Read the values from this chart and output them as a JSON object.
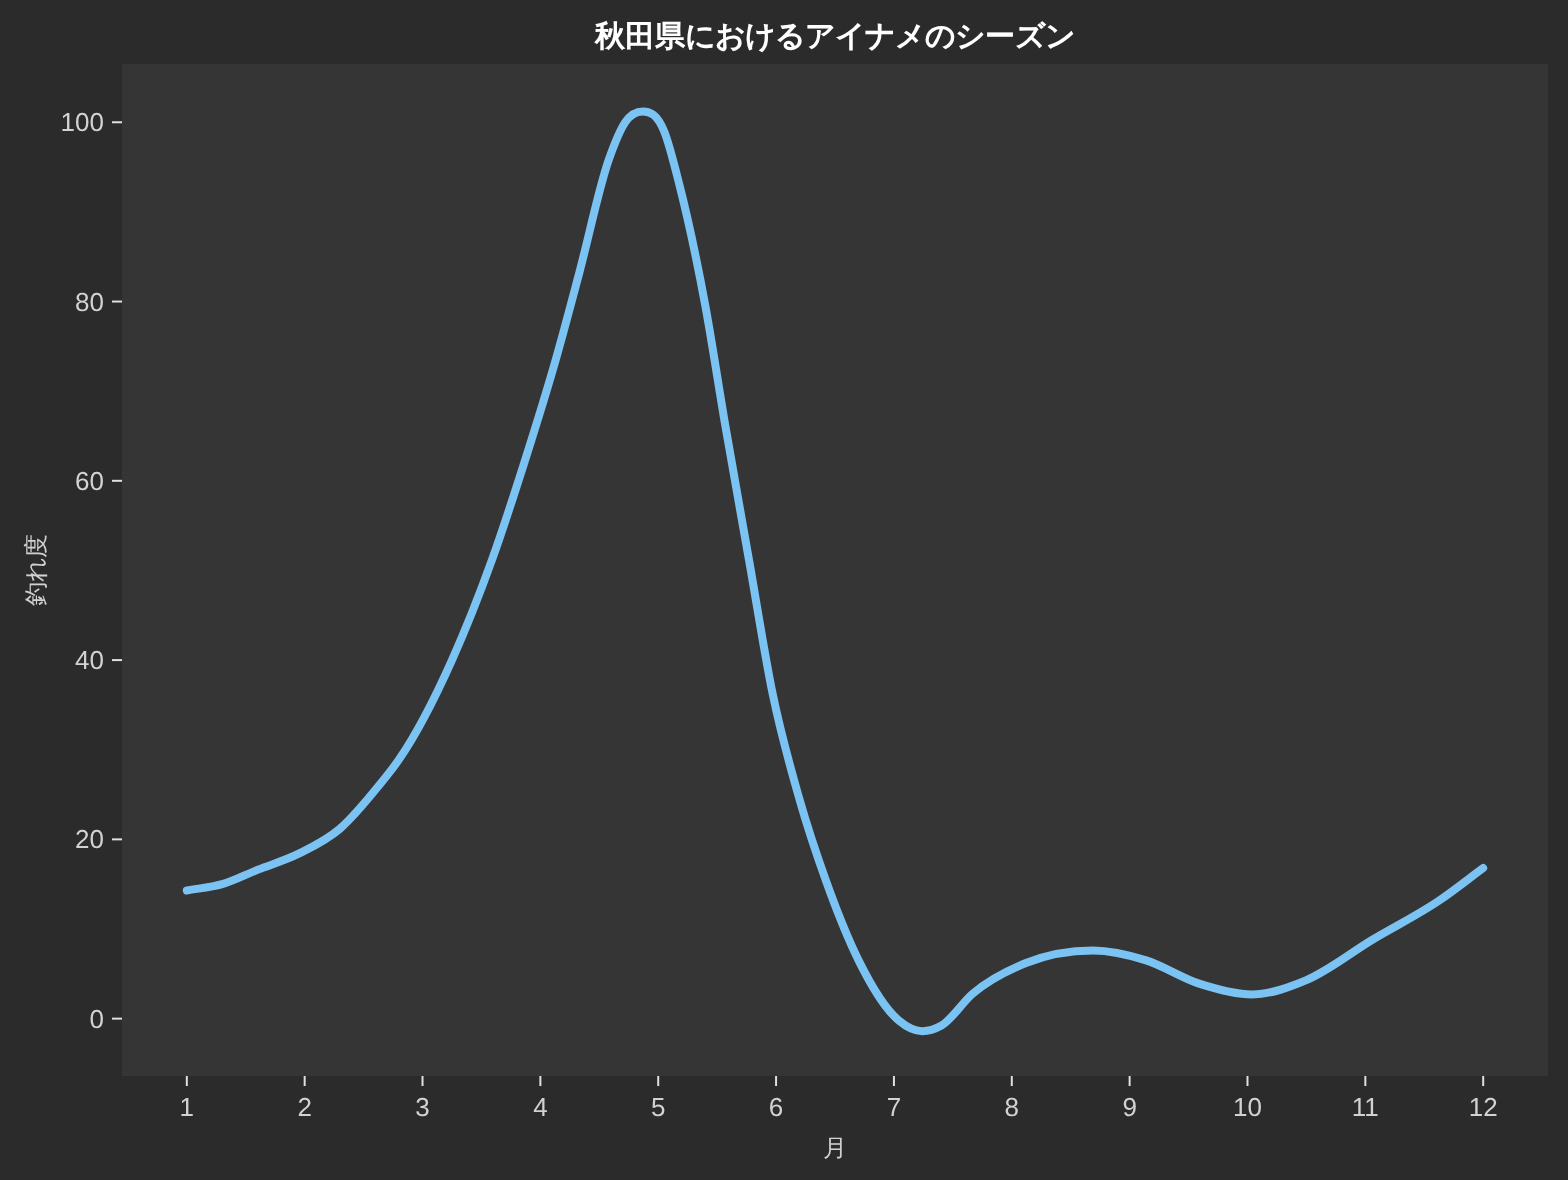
{
  "chart_data": {
    "type": "line",
    "title": "秋田県におけるアイナメのシーズン",
    "xlabel": "月",
    "ylabel": "釣れ度",
    "x": [
      1.0,
      1.3,
      1.6,
      1.95,
      2.3,
      2.63,
      2.8,
      3.25,
      3.59,
      3.87,
      4.13,
      4.33,
      4.58,
      4.72,
      4.87,
      5.05,
      5.18,
      5.4,
      5.57,
      5.77,
      5.97,
      6.2,
      6.42,
      6.7,
      7.04,
      7.24,
      7.4,
      7.67,
      8.12,
      8.69,
      9.14,
      9.59,
      10.04,
      10.5,
      11.06,
      11.63,
      12.0
    ],
    "series": [
      {
        "color": "#7bc3f3",
        "values": [
          14.3,
          15.0,
          16.6,
          18.4,
          21.2,
          26.0,
          28.9,
          40.0,
          51.2,
          62.3,
          73.5,
          83.2,
          95.8,
          100.0,
          101.2,
          99.0,
          93.0,
          79.5,
          66.1,
          51.2,
          36.3,
          24.4,
          15.5,
          6.5,
          -0.2,
          -1.4,
          -0.8,
          2.8,
          6.2,
          7.6,
          6.5,
          3.9,
          2.7,
          4.3,
          8.8,
          13.2,
          16.8
        ]
      }
    ],
    "xlim": [
      0.45,
      12.55
    ],
    "ylim": [
      -6.4,
      106.5
    ],
    "xticks": [
      1,
      2,
      3,
      4,
      5,
      6,
      7,
      8,
      9,
      10,
      11,
      12
    ],
    "yticks": [
      0,
      20,
      40,
      60,
      80,
      100
    ],
    "line_style": "solid"
  }
}
